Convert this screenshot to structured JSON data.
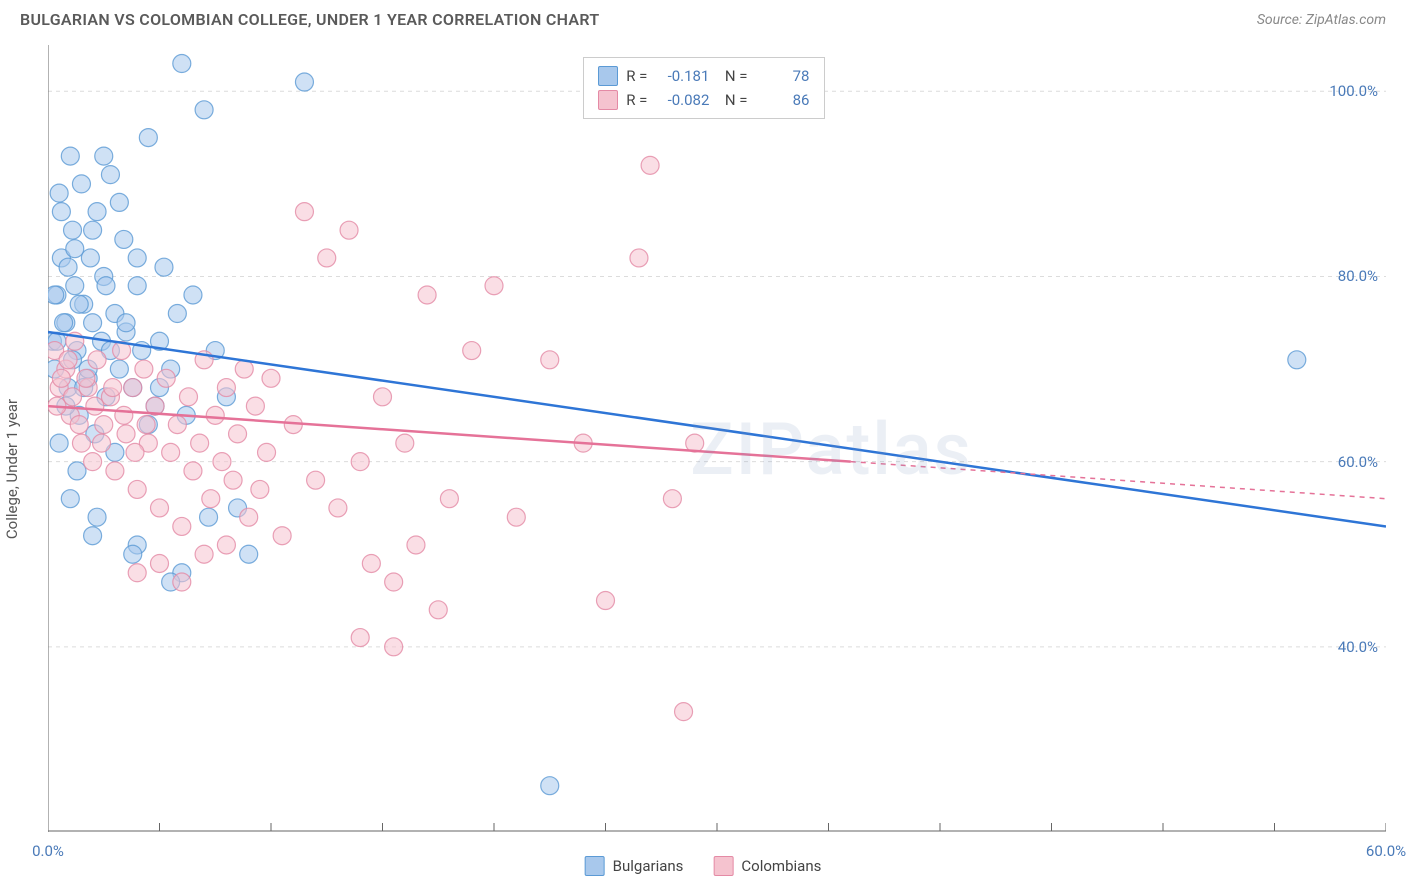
{
  "header": {
    "title": "BULGARIAN VS COLOMBIAN COLLEGE, UNDER 1 YEAR CORRELATION CHART",
    "source": "Source: ZipAtlas.com"
  },
  "ylabel": "College, Under 1 year",
  "watermark": "ZIPatlas",
  "chart": {
    "type": "scatter",
    "background_color": "#ffffff",
    "grid_color": "#dcdcdc",
    "axis_color": "#666666",
    "text_color": "#555555",
    "tick_label_color": "#4a7ab8",
    "xlim": [
      0,
      60
    ],
    "ylim": [
      20,
      105
    ],
    "x_ticks": [
      0,
      5,
      10,
      15,
      20,
      25,
      30,
      35,
      40,
      45,
      50,
      55,
      60
    ],
    "x_tick_labels": {
      "0": "0.0%",
      "60": "60.0%"
    },
    "y_ticks": [
      40,
      60,
      80,
      100
    ],
    "y_tick_labels": {
      "40": "40.0%",
      "60": "60.0%",
      "80": "80.0%",
      "100": "100.0%"
    },
    "marker_radius": 9,
    "marker_opacity": 0.55,
    "line_width_solid": 2.5,
    "series": [
      {
        "name": "Bulgarians",
        "color_fill": "#a8c8ec",
        "color_stroke": "#5b9ad5",
        "line_color": "#2e75d6",
        "R": "-0.181",
        "N": "78",
        "trend": {
          "x1": 0,
          "y1": 74,
          "x2": 60,
          "y2": 53,
          "solid_until_x": 60
        },
        "points": [
          [
            0.2,
            73
          ],
          [
            0.3,
            70
          ],
          [
            0.4,
            78
          ],
          [
            0.5,
            89
          ],
          [
            0.6,
            82
          ],
          [
            0.8,
            75
          ],
          [
            0.9,
            68
          ],
          [
            1.0,
            93
          ],
          [
            1.1,
            85
          ],
          [
            1.2,
            79
          ],
          [
            1.3,
            72
          ],
          [
            1.4,
            65
          ],
          [
            1.5,
            90
          ],
          [
            1.6,
            77
          ],
          [
            1.8,
            69
          ],
          [
            1.9,
            82
          ],
          [
            2.0,
            75
          ],
          [
            2.1,
            63
          ],
          [
            2.2,
            87
          ],
          [
            2.4,
            73
          ],
          [
            2.5,
            80
          ],
          [
            2.6,
            67
          ],
          [
            2.8,
            91
          ],
          [
            3.0,
            76
          ],
          [
            3.2,
            70
          ],
          [
            3.4,
            84
          ],
          [
            3.5,
            74
          ],
          [
            3.8,
            68
          ],
          [
            4.0,
            79
          ],
          [
            4.2,
            72
          ],
          [
            4.5,
            95
          ],
          [
            4.8,
            66
          ],
          [
            5.0,
            73
          ],
          [
            5.2,
            81
          ],
          [
            5.5,
            70
          ],
          [
            5.8,
            76
          ],
          [
            6.0,
            103
          ],
          [
            6.2,
            65
          ],
          [
            6.5,
            78
          ],
          [
            7.0,
            98
          ],
          [
            7.2,
            54
          ],
          [
            7.5,
            72
          ],
          [
            8.0,
            67
          ],
          [
            4.0,
            51
          ],
          [
            2.0,
            52
          ],
          [
            2.2,
            54
          ],
          [
            1.0,
            56
          ],
          [
            1.3,
            59
          ],
          [
            3.0,
            61
          ],
          [
            0.5,
            62
          ],
          [
            0.8,
            66
          ],
          [
            1.6,
            68
          ],
          [
            1.1,
            71
          ],
          [
            0.4,
            73
          ],
          [
            0.7,
            75
          ],
          [
            1.4,
            77
          ],
          [
            2.6,
            79
          ],
          [
            0.9,
            81
          ],
          [
            1.2,
            83
          ],
          [
            2.0,
            85
          ],
          [
            0.6,
            87
          ],
          [
            1.8,
            70
          ],
          [
            4.5,
            64
          ],
          [
            5.0,
            68
          ],
          [
            2.8,
            72
          ],
          [
            3.5,
            75
          ],
          [
            0.3,
            78
          ],
          [
            11.5,
            101
          ],
          [
            9.0,
            50
          ],
          [
            2.5,
            93
          ],
          [
            3.2,
            88
          ],
          [
            4.0,
            82
          ],
          [
            56.0,
            71
          ],
          [
            8.5,
            55
          ],
          [
            6.0,
            48
          ],
          [
            22.5,
            25
          ],
          [
            5.5,
            47
          ],
          [
            3.8,
            50
          ]
        ]
      },
      {
        "name": "Colombians",
        "color_fill": "#f5c3cf",
        "color_stroke": "#e48aa5",
        "line_color": "#e57298",
        "R": "-0.082",
        "N": "86",
        "trend": {
          "x1": 0,
          "y1": 66,
          "x2": 60,
          "y2": 56,
          "solid_until_x": 36
        },
        "points": [
          [
            0.3,
            72
          ],
          [
            0.5,
            68
          ],
          [
            0.8,
            70
          ],
          [
            1.0,
            65
          ],
          [
            1.2,
            73
          ],
          [
            1.5,
            62
          ],
          [
            1.8,
            68
          ],
          [
            2.0,
            60
          ],
          [
            2.2,
            71
          ],
          [
            2.5,
            64
          ],
          [
            2.8,
            67
          ],
          [
            3.0,
            59
          ],
          [
            3.3,
            72
          ],
          [
            3.5,
            63
          ],
          [
            3.8,
            68
          ],
          [
            4.0,
            57
          ],
          [
            4.3,
            70
          ],
          [
            4.5,
            62
          ],
          [
            4.8,
            66
          ],
          [
            5.0,
            55
          ],
          [
            5.3,
            69
          ],
          [
            5.5,
            61
          ],
          [
            5.8,
            64
          ],
          [
            6.0,
            53
          ],
          [
            6.3,
            67
          ],
          [
            6.5,
            59
          ],
          [
            6.8,
            62
          ],
          [
            7.0,
            71
          ],
          [
            7.3,
            56
          ],
          [
            7.5,
            65
          ],
          [
            7.8,
            60
          ],
          [
            8.0,
            68
          ],
          [
            8.3,
            58
          ],
          [
            8.5,
            63
          ],
          [
            8.8,
            70
          ],
          [
            9.0,
            54
          ],
          [
            9.3,
            66
          ],
          [
            9.5,
            57
          ],
          [
            9.8,
            61
          ],
          [
            10.0,
            69
          ],
          [
            10.5,
            52
          ],
          [
            11.0,
            64
          ],
          [
            11.5,
            87
          ],
          [
            12.0,
            58
          ],
          [
            12.5,
            82
          ],
          [
            13.0,
            55
          ],
          [
            13.5,
            85
          ],
          [
            14.0,
            60
          ],
          [
            14.5,
            49
          ],
          [
            15.0,
            67
          ],
          [
            15.5,
            47
          ],
          [
            16.0,
            62
          ],
          [
            16.5,
            51
          ],
          [
            17.0,
            78
          ],
          [
            17.5,
            44
          ],
          [
            18.0,
            56
          ],
          [
            19.0,
            72
          ],
          [
            20.0,
            79
          ],
          [
            21.0,
            54
          ],
          [
            22.5,
            71
          ],
          [
            24.0,
            62
          ],
          [
            25.0,
            45
          ],
          [
            26.5,
            82
          ],
          [
            27.0,
            92
          ],
          [
            28.0,
            56
          ],
          [
            28.5,
            33
          ],
          [
            29.0,
            62
          ],
          [
            14.0,
            41
          ],
          [
            15.5,
            40
          ],
          [
            4.0,
            48
          ],
          [
            5.0,
            49
          ],
          [
            6.0,
            47
          ],
          [
            7.0,
            50
          ],
          [
            8.0,
            51
          ],
          [
            0.4,
            66
          ],
          [
            0.6,
            69
          ],
          [
            0.9,
            71
          ],
          [
            1.1,
            67
          ],
          [
            1.4,
            64
          ],
          [
            1.7,
            69
          ],
          [
            2.1,
            66
          ],
          [
            2.4,
            62
          ],
          [
            2.9,
            68
          ],
          [
            3.4,
            65
          ],
          [
            3.9,
            61
          ],
          [
            4.4,
            64
          ]
        ]
      }
    ]
  },
  "legend_bottom": [
    {
      "label": "Bulgarians",
      "fill": "#a8c8ec",
      "stroke": "#5b9ad5"
    },
    {
      "label": "Colombians",
      "fill": "#f5c3cf",
      "stroke": "#e48aa5"
    }
  ]
}
